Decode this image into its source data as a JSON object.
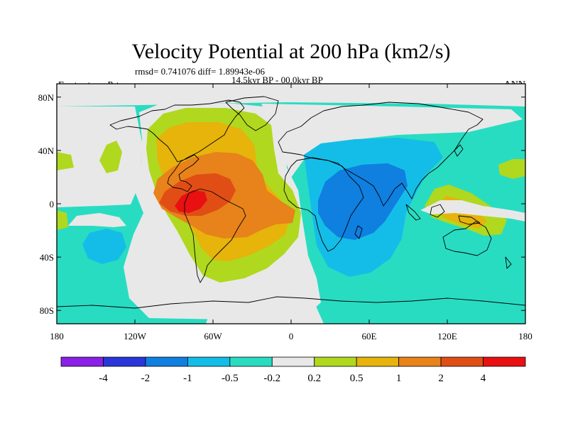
{
  "chart_data": {
    "type": "contour-map",
    "title": "Velocity Potential at 200 hPa (km2/s)",
    "stats_line": "rmsd= 0.741076 diff= 1.89943e-06",
    "period": "14.5kyr BP - 00.0kyr BP",
    "experiment": "Expt = temnP-temna",
    "season": "ANN",
    "projection": "cylindrical equidistant",
    "lon_range": [
      -180,
      180
    ],
    "lat_range": [
      -90,
      90
    ],
    "x_ticks": [
      {
        "value": -180,
        "label": "180"
      },
      {
        "value": -120,
        "label": "120W"
      },
      {
        "value": -60,
        "label": "60W"
      },
      {
        "value": 0,
        "label": "0"
      },
      {
        "value": 60,
        "label": "60E"
      },
      {
        "value": 120,
        "label": "120E"
      },
      {
        "value": 180,
        "label": "180"
      }
    ],
    "y_ticks": [
      {
        "value": 80,
        "label": "80N"
      },
      {
        "value": 40,
        "label": "40N"
      },
      {
        "value": 0,
        "label": "0"
      },
      {
        "value": -40,
        "label": "40S"
      },
      {
        "value": -80,
        "label": "80S"
      }
    ],
    "contour_levels": [
      -4,
      -2,
      -1,
      -0.5,
      -0.2,
      0.2,
      0.5,
      1,
      2,
      4
    ],
    "level_labels": [
      "-4",
      "-2",
      "-1",
      "-0.5",
      "-0.2",
      "0.2",
      "0.5",
      "1",
      "2",
      "4"
    ],
    "colors": [
      "#8a1fe6",
      "#2a36d8",
      "#0f7fe0",
      "#14bde8",
      "#28dcc2",
      "#e8e8e8",
      "#b0d81e",
      "#e6b40a",
      "#e8821a",
      "#e04e16",
      "#e81010"
    ],
    "features": [
      {
        "name": "positive center over Caribbean / northern South America",
        "lon": -80,
        "lat": 10,
        "value": 2.5
      },
      {
        "name": "negative center over Arabian Sea / Horn of Africa",
        "lon": 55,
        "lat": 2,
        "value": -1.2
      },
      {
        "name": "positive lobe over Maritime Continent",
        "lon": 125,
        "lat": -3,
        "value": 0.6
      },
      {
        "name": "negative lobe over South Pacific",
        "lon": -150,
        "lat": -25,
        "value": -0.6
      }
    ]
  }
}
